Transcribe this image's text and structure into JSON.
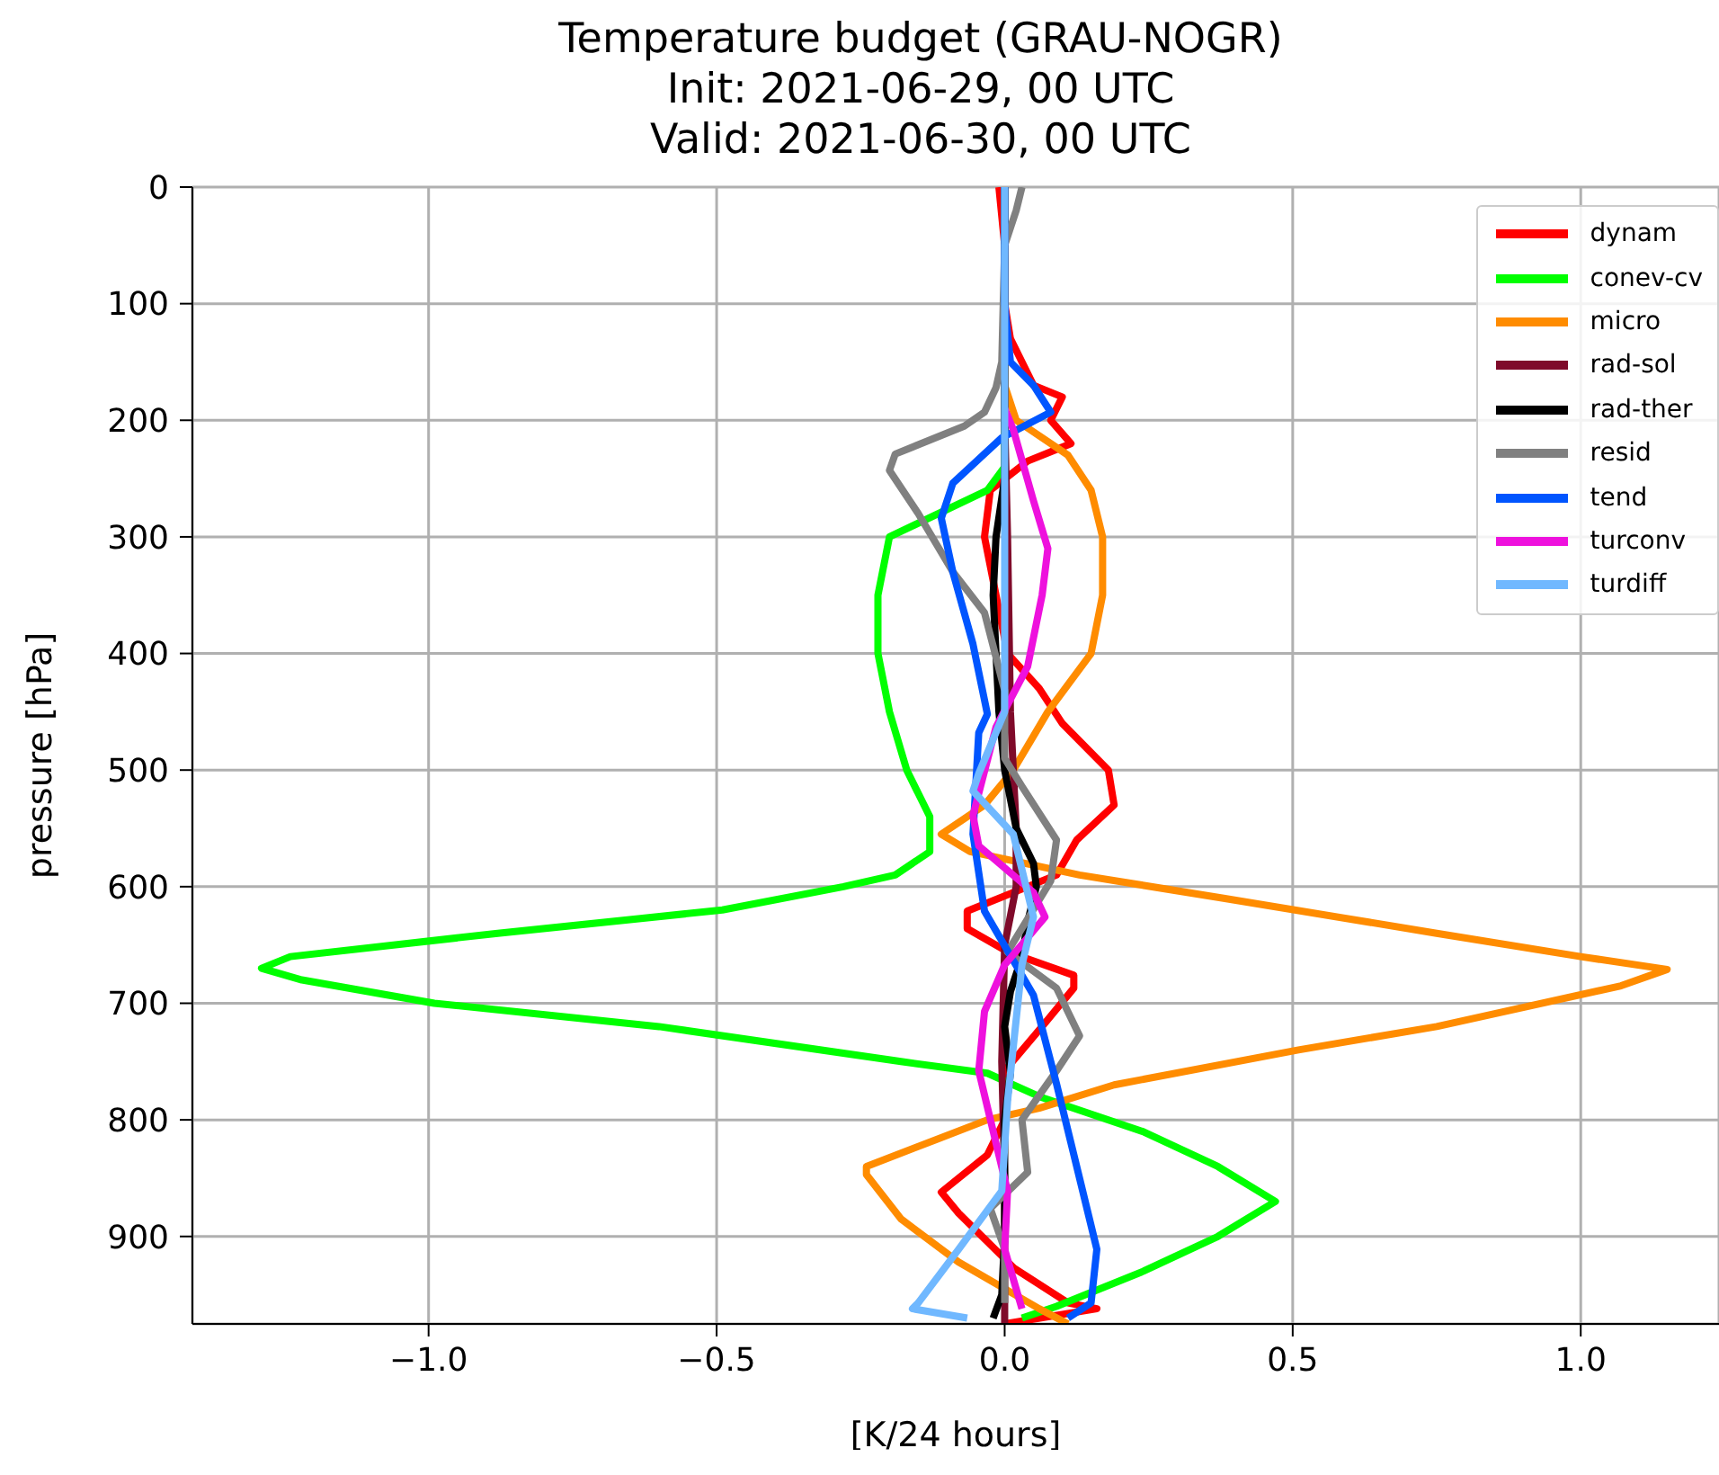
{
  "chart_data": {
    "type": "line",
    "title": "Temperature budget (GRAU-NOGR)\nInit: 2021-06-29, 00 UTC\nValid: 2021-06-30, 00 UTC",
    "xlabel": "[K/24 hours]",
    "ylabel": "pressure [hPa]",
    "xlim": [
      -1.41,
      1.24
    ],
    "xticks": [
      {
        "value": -1,
        "label": "−1.0"
      },
      {
        "value": -0.5,
        "label": "−0.5"
      },
      {
        "value": 0,
        "label": "0.0"
      },
      {
        "value": 0.5,
        "label": "0.5"
      },
      {
        "value": 1,
        "label": "1.0"
      }
    ],
    "ylim": [
      975,
      0
    ],
    "yticks": [
      0,
      100,
      200,
      300,
      400,
      500,
      600,
      700,
      800,
      900
    ],
    "grid": true,
    "legend": "top right",
    "marker": "none",
    "line_style": "solid",
    "series": [
      {
        "name": "dynam",
        "color": "#ff0000",
        "x": [
          -0.01,
          0,
          0,
          0.01,
          0.05,
          0.1,
          0.08,
          0.115,
          0.04,
          -0.025,
          -0.035,
          -0.015,
          0.005,
          0.06,
          0.1,
          0.18,
          0.19,
          0.125,
          0.09,
          -0.065,
          -0.065,
          0.006,
          0.12,
          0.12,
          0.07,
          0.0,
          0.0,
          -0.03,
          -0.11,
          -0.08,
          0.016,
          0.11,
          0.16,
          0.0
        ],
        "values": [
          0,
          50,
          100,
          130,
          170,
          180,
          200,
          220,
          235,
          260,
          300,
          350,
          400,
          430,
          460,
          500,
          530,
          560,
          590,
          621,
          636,
          656,
          676,
          687,
          717,
          758,
          800,
          830,
          862,
          880,
          927,
          957,
          962,
          975
        ]
      },
      {
        "name": "conev-cv",
        "color": "#00ff00",
        "x": [
          0,
          0,
          0,
          -0.03,
          -0.2,
          -0.22,
          -0.22,
          -0.2,
          -0.17,
          -0.13,
          -0.13,
          -0.19,
          -0.28,
          -0.49,
          -0.88,
          -1.24,
          -1.29,
          -1.22,
          -0.99,
          -0.6,
          -0.18,
          -0.03,
          0.06,
          0.24,
          0.37,
          0.47,
          0.37,
          0.24,
          0.09,
          0.03
        ],
        "values": [
          0,
          100,
          240,
          260,
          300,
          350,
          400,
          450,
          500,
          540,
          570,
          590,
          600,
          620,
          640,
          660,
          670,
          680,
          700,
          720,
          750,
          760,
          780,
          810,
          840,
          870,
          900,
          930,
          960,
          970
        ]
      },
      {
        "name": "micro",
        "color": "#ff8c00",
        "x": [
          0,
          0,
          0.02,
          0.11,
          0.15,
          0.17,
          0.17,
          0.15,
          0.075,
          0.015,
          -0.035,
          -0.11,
          -0.06,
          0.13,
          0.38,
          0.75,
          1.0,
          1.15,
          1.07,
          0.75,
          0.51,
          0.19,
          0.06,
          -0.03,
          -0.24,
          -0.24,
          -0.18,
          -0.08,
          0.06,
          0.11
        ],
        "values": [
          0,
          170,
          200,
          230,
          260,
          300,
          350,
          400,
          450,
          500,
          530,
          555,
          570,
          590,
          610,
          640,
          660,
          671,
          685,
          720,
          740,
          770,
          790,
          800,
          840,
          847,
          885,
          922,
          962,
          975
        ]
      },
      {
        "name": "rad-sol",
        "color": "#7f0a2a",
        "x": [
          0,
          0,
          0.005,
          0.01,
          0.02,
          0.02,
          0.0,
          -0.005,
          0.0,
          0.0
        ],
        "values": [
          0,
          200,
          300,
          450,
          550,
          600,
          650,
          750,
          850,
          975
        ]
      },
      {
        "name": "rad-ther",
        "color": "#000000",
        "x": [
          0,
          0,
          0,
          -0.015,
          -0.02,
          -0.015,
          -0.01,
          0.0,
          0.02,
          0.05,
          0.055,
          0.04,
          0.03,
          0.01,
          0.0,
          0.01,
          0.0,
          0.0,
          0.0,
          -0.005,
          -0.02
        ],
        "values": [
          0,
          200,
          250,
          300,
          350,
          400,
          450,
          500,
          550,
          580,
          600,
          630,
          660,
          690,
          720,
          760,
          800,
          850,
          900,
          950,
          970
        ]
      },
      {
        "name": "resid",
        "color": "#808080",
        "x": [
          0.03,
          0.02,
          0.0,
          -0.005,
          -0.015,
          -0.035,
          -0.07,
          -0.19,
          -0.2,
          -0.15,
          -0.09,
          -0.035,
          0.0,
          0.0,
          0.03,
          0.09,
          0.08,
          0.005,
          0.09,
          0.13,
          0.09,
          0.03,
          0.04,
          -0.025,
          0.0,
          0.0
        ],
        "values": [
          0,
          20,
          50,
          150,
          172,
          193,
          205,
          229,
          243,
          280,
          330,
          365,
          432,
          490,
          514,
          560,
          595,
          656,
          687,
          728,
          758,
          800,
          845,
          876,
          911,
          957
        ]
      },
      {
        "name": "tend",
        "color": "#0055ff",
        "x": [
          0,
          0,
          0.01,
          0.05,
          0.08,
          -0.005,
          -0.09,
          -0.11,
          -0.09,
          -0.055,
          -0.03,
          -0.045,
          -0.055,
          -0.035,
          0.05,
          0.09,
          0.13,
          0.16,
          0.15,
          0.11
        ],
        "values": [
          0,
          100,
          150,
          170,
          193,
          215,
          254,
          284,
          330,
          392,
          452,
          468,
          555,
          621,
          693,
          769,
          850,
          911,
          957,
          970
        ]
      },
      {
        "name": "turconv",
        "color": "#ee11dd",
        "x": [
          0,
          0.015,
          0.05,
          0.075,
          0.065,
          0.04,
          -0.015,
          -0.055,
          -0.045,
          0.05,
          0.07,
          0.0,
          -0.035,
          -0.045,
          -0.015,
          0.005,
          0.0,
          0.03
        ],
        "values": [
          190,
          208,
          269,
          310,
          350,
          411,
          463,
          539,
          565,
          605,
          626,
          667,
          707,
          758,
          820,
          861,
          911,
          962
        ]
      },
      {
        "name": "turdiff",
        "color": "#70b8ff",
        "x": [
          0,
          0,
          0,
          -0.045,
          -0.055,
          0.015,
          0.05,
          0.03,
          0.005,
          -0.005,
          -0.08,
          -0.15,
          -0.16,
          -0.065
        ],
        "values": [
          0,
          200,
          450,
          503,
          518,
          555,
          626,
          667,
          784,
          861,
          911,
          957,
          962,
          970
        ]
      }
    ]
  }
}
